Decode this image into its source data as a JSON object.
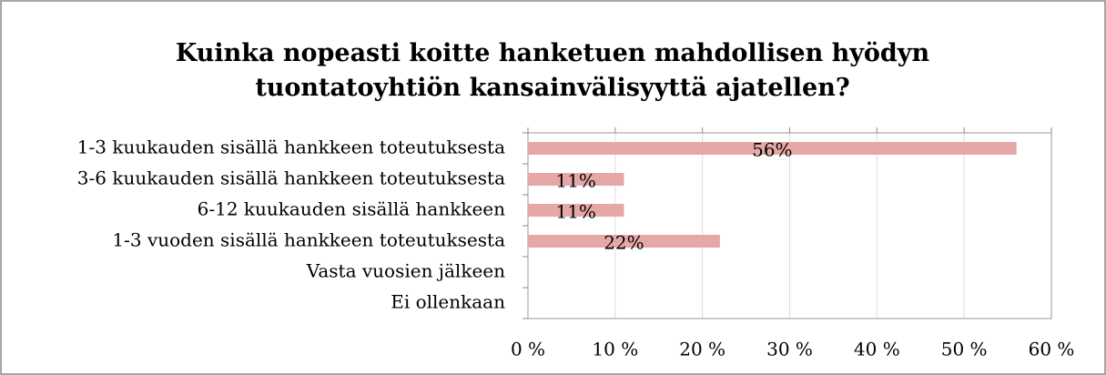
{
  "chart_data": {
    "type": "bar",
    "orientation": "horizontal",
    "title": "Kuinka nopeasti koitte hanketuen mahdollisen hyödyn tuontatoyhtiön kansainvälisyyttä ajatellen?",
    "categories": [
      "1-3 kuukauden sisällä hankkeen toteutuksesta",
      "3-6 kuukauden sisällä hankkeen toteutuksesta",
      "6-12 kuukauden sisällä hankkeen",
      "1-3 vuoden sisällä hankkeen toteutuksesta",
      "Vasta vuosien jälkeen",
      "Ei ollenkaan"
    ],
    "values": [
      56,
      11,
      11,
      22,
      0,
      0
    ],
    "value_labels": [
      "56%",
      "11%",
      "11%",
      "22%",
      null,
      null
    ],
    "color": "#e6a8a6",
    "xlim": [
      0,
      60
    ],
    "xticks": [
      {
        "value": 0,
        "label": "0 %"
      },
      {
        "value": 10,
        "label": "10 %"
      },
      {
        "value": 20,
        "label": "20 %"
      },
      {
        "value": 30,
        "label": "30 %"
      },
      {
        "value": 40,
        "label": "40 %"
      },
      {
        "value": 50,
        "label": "50 %"
      },
      {
        "value": 60,
        "label": "60 %"
      }
    ],
    "grid": true
  }
}
